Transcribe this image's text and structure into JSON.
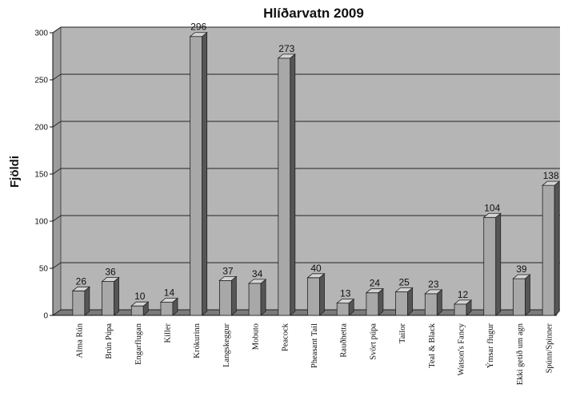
{
  "chart_data": {
    "type": "bar",
    "title": "Hlíðarvatn 2009",
    "ylabel": "Fjöldi",
    "xlabel": "",
    "ylim": [
      0,
      300
    ],
    "yticks": [
      0,
      50,
      100,
      150,
      200,
      250,
      300
    ],
    "grid": true,
    "legend": false,
    "categories": [
      "Alma Rún",
      "Brún Púpa",
      "Engarflugan",
      "Killer",
      "Krókurinn",
      "Langskeggur",
      "Mobuto",
      "Peacock",
      "Pheasant Tail",
      "Rauðhetta",
      "Svört púpa",
      "Tailor",
      "Teal & Black",
      "Watson's Fancy",
      "Ýmsar flugur",
      "Ekki getið um agn",
      "Spúnn/Spinner"
    ],
    "values": [
      26,
      36,
      10,
      14,
      296,
      37,
      34,
      273,
      40,
      13,
      24,
      25,
      23,
      12,
      104,
      39,
      138
    ],
    "colors": {
      "plot_face": "#b5b5b5",
      "plot_side": "#9c9c9c",
      "floor": "#7a7a7a",
      "bar_front": "#a8a8a8",
      "bar_side": "#555555",
      "bar_top": "#d4d4d4",
      "gridline": "#222222"
    }
  }
}
